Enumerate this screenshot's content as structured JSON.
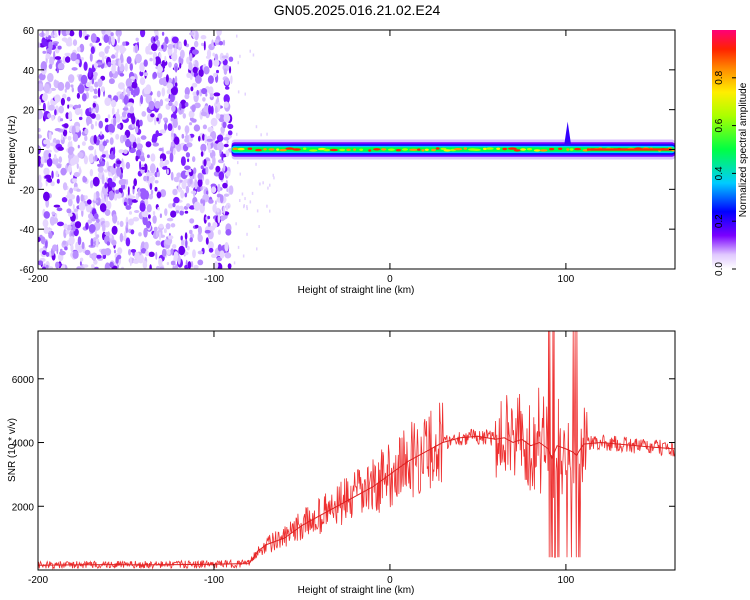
{
  "figure": {
    "title": "GN05.2025.016.21.02.E24"
  },
  "chart_data": [
    {
      "type": "heatmap",
      "name": "spectrogram",
      "xlabel": "Height of straight line (km)",
      "ylabel": "Frequency (Hz)",
      "xlim": [
        -200,
        162
      ],
      "ylim": [
        -60,
        60
      ],
      "xticks": [
        -200,
        -100,
        0,
        100
      ],
      "yticks": [
        -60,
        -40,
        -20,
        0,
        20,
        40,
        60
      ],
      "colorbar": {
        "label": "Normalized spectral amplitude",
        "range": [
          0,
          1
        ],
        "ticks": [
          "0.0",
          "0.2",
          "0.4",
          "0.6",
          "0.8"
        ],
        "colormap": [
          "#ffffff",
          "#6600ff",
          "#0000ff",
          "#00ffff",
          "#00ff00",
          "#ffff00",
          "#ff8800",
          "#ff0000",
          "#ff0077"
        ]
      },
      "regions": [
        {
          "x": [
            -200,
            -90
          ],
          "freq": [
            -60,
            60
          ],
          "amplitude": 0.1,
          "pattern": "scattered noise"
        },
        {
          "x": [
            -90,
            162
          ],
          "freq": [
            -3,
            3
          ],
          "amplitude": 0.75,
          "pattern": "narrow band near 0 Hz"
        }
      ]
    },
    {
      "type": "line",
      "name": "snr",
      "xlabel": "Height of straight line (km)",
      "ylabel": "SNR (10 * v/v)",
      "xlim": [
        -200,
        162
      ],
      "ylim": [
        0,
        7500
      ],
      "xticks": [
        -200,
        -100,
        0,
        100
      ],
      "yticks": [
        2000,
        4000,
        6000
      ],
      "color": "#ee2222",
      "x": [
        -200,
        -180,
        -160,
        -140,
        -120,
        -100,
        -90,
        -80,
        -75,
        -70,
        -60,
        -50,
        -40,
        -30,
        -20,
        -10,
        0,
        10,
        20,
        30,
        40,
        50,
        60,
        65,
        70,
        75,
        80,
        85,
        90,
        92,
        95,
        100,
        104,
        106,
        110,
        120,
        130,
        140,
        150,
        162
      ],
      "y": [
        150,
        160,
        170,
        160,
        170,
        180,
        190,
        200,
        600,
        800,
        1000,
        1400,
        1700,
        2000,
        2300,
        2600,
        3000,
        3400,
        3700,
        4000,
        4150,
        4200,
        4100,
        4150,
        4000,
        4100,
        3900,
        4000,
        3800,
        3500,
        3900,
        3800,
        3700,
        3600,
        3950,
        4000,
        3950,
        3900,
        3850,
        3800
      ]
    }
  ]
}
